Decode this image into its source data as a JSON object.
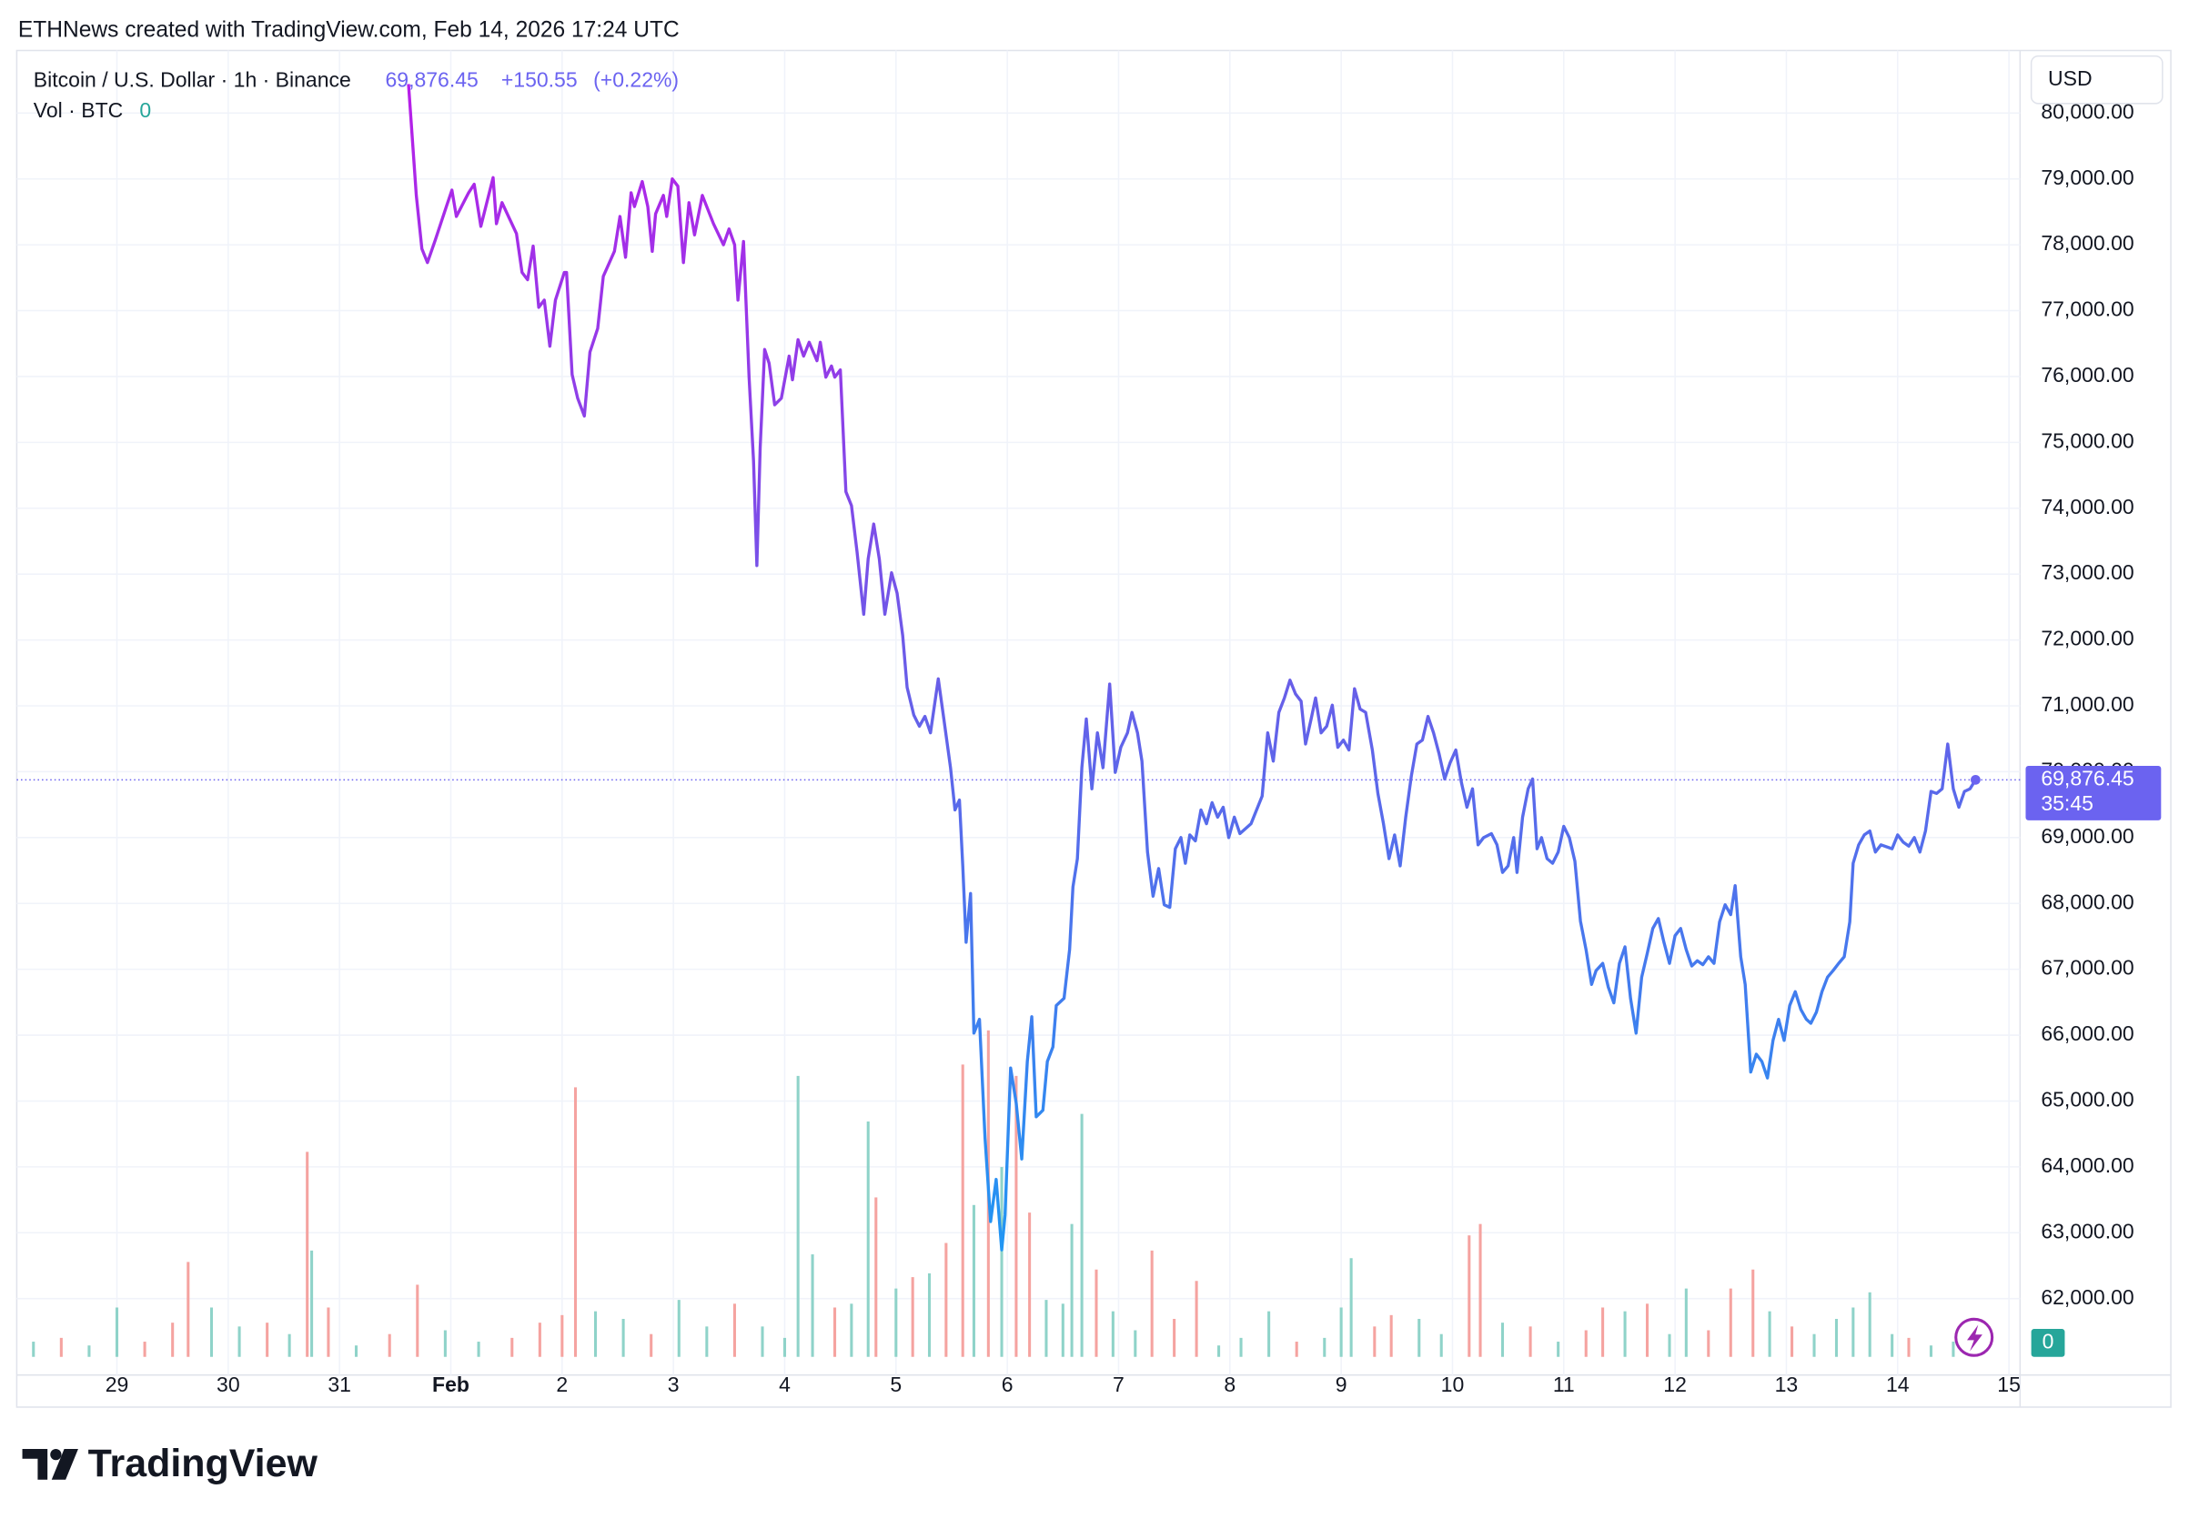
{
  "header": "ETHNews created with TradingView.com, Feb 14, 2026 17:24 UTC",
  "footer": {
    "brand": "TradingView"
  },
  "chart_data": {
    "type": "line",
    "symbol": "Bitcoin / U.S. Dollar · 1h · Binance",
    "last_price": {
      "value": 69876.45,
      "label": "69,876.45"
    },
    "change": {
      "value": 150.55,
      "label": "+150.55"
    },
    "change_pct": {
      "value": 0.22,
      "label": "(+0.22%)"
    },
    "countdown": "35:45",
    "currency": "USD",
    "volume_title": "Vol · BTC",
    "volume_last": 0,
    "gradient": [
      "#b81ee8",
      "#6a5ce8",
      "#2196f3"
    ],
    "badge_color": "#6b63f0",
    "grid": true,
    "xlim": [
      28.1,
      46.1
    ],
    "xticks": [
      {
        "value": 29,
        "label": "29"
      },
      {
        "value": 30,
        "label": "30"
      },
      {
        "value": 31,
        "label": "31"
      },
      {
        "value": 32,
        "label": "Feb"
      },
      {
        "value": 33,
        "label": "2"
      },
      {
        "value": 34,
        "label": "3"
      },
      {
        "value": 35,
        "label": "4"
      },
      {
        "value": 36,
        "label": "5"
      },
      {
        "value": 37,
        "label": "6"
      },
      {
        "value": 38,
        "label": "7"
      },
      {
        "value": 39,
        "label": "8"
      },
      {
        "value": 40,
        "label": "9"
      },
      {
        "value": 41,
        "label": "10"
      },
      {
        "value": 42,
        "label": "11"
      },
      {
        "value": 43,
        "label": "12"
      },
      {
        "value": 44,
        "label": "13"
      },
      {
        "value": 45,
        "label": "14"
      },
      {
        "value": 46,
        "label": "15"
      }
    ],
    "ylim": [
      60840,
      80950
    ],
    "yticks": [
      {
        "value": 62000,
        "label": "62,000.00"
      },
      {
        "value": 63000,
        "label": "63,000.00"
      },
      {
        "value": 64000,
        "label": "64,000.00"
      },
      {
        "value": 65000,
        "label": "65,000.00"
      },
      {
        "value": 66000,
        "label": "66,000.00"
      },
      {
        "value": 67000,
        "label": "67,000.00"
      },
      {
        "value": 68000,
        "label": "68,000.00"
      },
      {
        "value": 69000,
        "label": "69,000.00"
      },
      {
        "value": 70000,
        "label": "70,000.00"
      },
      {
        "value": 71000,
        "label": "71,000.00"
      },
      {
        "value": 72000,
        "label": "72,000.00"
      },
      {
        "value": 73000,
        "label": "73,000.00"
      },
      {
        "value": 74000,
        "label": "74,000.00"
      },
      {
        "value": 75000,
        "label": "75,000.00"
      },
      {
        "value": 76000,
        "label": "76,000.00"
      },
      {
        "value": 77000,
        "label": "77,000.00"
      },
      {
        "value": 78000,
        "label": "78,000.00"
      },
      {
        "value": 79000,
        "label": "79,000.00"
      },
      {
        "value": 80000,
        "label": "80,000.00"
      }
    ],
    "x": [
      31.62,
      31.69,
      31.74,
      31.79,
      31.86,
      31.96,
      32.01,
      32.05,
      32.16,
      32.21,
      32.27,
      32.38,
      32.41,
      32.46,
      32.59,
      32.64,
      32.69,
      32.74,
      32.79,
      32.84,
      32.89,
      32.94,
      33.02,
      33.04,
      33.09,
      33.14,
      33.2,
      33.25,
      33.32,
      33.37,
      33.47,
      33.52,
      33.57,
      33.62,
      33.65,
      33.72,
      33.77,
      33.81,
      33.84,
      33.91,
      33.94,
      33.99,
      34.04,
      34.09,
      34.14,
      34.19,
      34.26,
      34.36,
      34.45,
      34.5,
      34.55,
      34.58,
      34.63,
      34.68,
      34.72,
      34.75,
      34.78,
      34.82,
      34.86,
      34.91,
      34.97,
      35.04,
      35.07,
      35.12,
      35.17,
      35.22,
      35.29,
      35.32,
      35.37,
      35.42,
      35.45,
      35.5,
      35.55,
      35.6,
      35.65,
      35.71,
      35.75,
      35.8,
      35.85,
      35.9,
      35.96,
      36.01,
      36.06,
      36.1,
      36.16,
      36.21,
      36.26,
      36.31,
      36.38,
      36.43,
      36.49,
      36.53,
      36.57,
      36.6,
      36.63,
      36.67,
      36.7,
      36.75,
      36.8,
      36.85,
      36.9,
      36.95,
      36.98,
      37.03,
      37.08,
      37.13,
      37.18,
      37.22,
      37.26,
      37.32,
      37.36,
      37.41,
      37.44,
      37.51,
      37.56,
      37.59,
      37.63,
      37.67,
      37.71,
      37.76,
      37.81,
      37.86,
      37.92,
      37.97,
      38.02,
      38.08,
      38.12,
      38.17,
      38.21,
      38.26,
      38.31,
      38.36,
      38.41,
      38.46,
      38.51,
      38.56,
      38.6,
      38.64,
      38.69,
      38.74,
      38.79,
      38.84,
      38.89,
      38.94,
      38.99,
      39.04,
      39.09,
      39.19,
      39.24,
      39.29,
      39.34,
      39.39,
      39.44,
      39.49,
      39.54,
      39.59,
      39.64,
      39.68,
      39.73,
      39.77,
      39.82,
      39.87,
      39.92,
      39.97,
      40.02,
      40.07,
      40.12,
      40.17,
      40.22,
      40.28,
      40.33,
      40.38,
      40.43,
      40.48,
      40.53,
      40.58,
      40.63,
      40.68,
      40.73,
      40.78,
      40.83,
      40.88,
      40.93,
      40.98,
      41.03,
      41.08,
      41.13,
      41.18,
      41.23,
      41.28,
      41.35,
      41.4,
      41.45,
      41.5,
      41.55,
      41.58,
      41.63,
      41.68,
      41.72,
      41.76,
      41.8,
      41.85,
      41.9,
      41.95,
      42.0,
      42.05,
      42.1,
      42.15,
      42.2,
      42.25,
      42.29,
      42.35,
      42.4,
      42.45,
      42.5,
      42.55,
      42.6,
      42.65,
      42.7,
      42.75,
      42.8,
      42.85,
      42.9,
      42.95,
      43.0,
      43.05,
      43.1,
      43.15,
      43.2,
      43.25,
      43.3,
      43.35,
      43.4,
      43.45,
      43.5,
      43.54,
      43.59,
      43.63,
      43.68,
      43.73,
      43.78,
      43.83,
      43.88,
      43.93,
      43.98,
      44.03,
      44.08,
      44.13,
      44.18,
      44.22,
      44.27,
      44.32,
      44.37,
      44.42,
      44.47,
      44.52,
      44.57,
      44.6,
      44.65,
      44.7,
      44.75,
      44.8,
      44.85,
      44.95,
      45.0,
      45.05,
      45.1,
      45.15,
      45.2,
      45.25,
      45.3,
      45.35,
      45.4,
      45.45,
      45.5,
      45.55,
      45.6,
      45.65,
      45.7
    ],
    "values": [
      80440,
      78750,
      77940,
      77730,
      78070,
      78580,
      78830,
      78430,
      78790,
      78920,
      78280,
      79020,
      78320,
      78640,
      78170,
      77580,
      77470,
      77980,
      77050,
      77160,
      76460,
      77160,
      77580,
      77580,
      76030,
      75670,
      75400,
      76370,
      76730,
      77520,
      77900,
      78430,
      77810,
      78790,
      78580,
      78960,
      78580,
      77900,
      78470,
      78750,
      78430,
      79000,
      78890,
      77730,
      78640,
      78150,
      78750,
      78320,
      78000,
      78240,
      78000,
      77160,
      78050,
      75990,
      74720,
      73130,
      74930,
      76410,
      76200,
      75570,
      75670,
      76310,
      75950,
      76560,
      76310,
      76520,
      76240,
      76520,
      75990,
      76160,
      75990,
      76100,
      74250,
      74040,
      73340,
      72390,
      73230,
      73760,
      73230,
      72390,
      73020,
      72710,
      72070,
      71280,
      70860,
      70690,
      70840,
      70590,
      71410,
      70800,
      70060,
      69420,
      69570,
      68570,
      67410,
      68150,
      66030,
      66240,
      64440,
      63170,
      63810,
      62740,
      63270,
      65500,
      64970,
      64120,
      65600,
      66280,
      64760,
      64860,
      65600,
      65820,
      66450,
      66560,
      67300,
      68250,
      68680,
      70060,
      70800,
      69740,
      70590,
      70060,
      71330,
      69990,
      70370,
      70590,
      70900,
      70590,
      70160,
      68780,
      68110,
      68530,
      67980,
      67940,
      68830,
      69000,
      68610,
      69040,
      68950,
      69420,
      69210,
      69530,
      69310,
      69460,
      69000,
      69310,
      69060,
      69210,
      69420,
      69630,
      70590,
      70160,
      70900,
      71120,
      71390,
      71180,
      71070,
      70420,
      70800,
      71120,
      70590,
      70690,
      71010,
      70370,
      70480,
      70330,
      71260,
      70950,
      70900,
      70330,
      69670,
      69210,
      68680,
      69040,
      68570,
      69310,
      69930,
      70420,
      70480,
      70840,
      70590,
      70270,
      69890,
      70140,
      70330,
      69840,
      69460,
      69740,
      68890,
      69000,
      69060,
      68890,
      68470,
      68570,
      69000,
      68470,
      69310,
      69740,
      69890,
      68830,
      69000,
      68680,
      68610,
      68780,
      69170,
      69000,
      68640,
      67730,
      67300,
      66770,
      66980,
      67090,
      66730,
      66490,
      67090,
      67340,
      66560,
      66030,
      66880,
      67240,
      67620,
      67770,
      67410,
      67090,
      67510,
      67620,
      67300,
      67050,
      67130,
      67070,
      67190,
      67090,
      67720,
      67980,
      67830,
      68270,
      67190,
      66770,
      65440,
      65710,
      65600,
      65350,
      65920,
      66240,
      65920,
      66450,
      66660,
      66390,
      66240,
      66180,
      66350,
      66660,
      66880,
      66980,
      67090,
      67190,
      67720,
      68610,
      68890,
      69040,
      69100,
      68780,
      68890,
      68830,
      69040,
      68930,
      68870,
      69000,
      68780,
      69100,
      69700,
      69670,
      69740,
      70420,
      69740,
      69460,
      69700,
      69740,
      69876.45
    ],
    "volume": {
      "up_color": "#8fd3c9",
      "down_color": "#f5a3a0",
      "badge_color": "#26a69a",
      "lim": [
        0,
        100
      ],
      "x": [
        28.25,
        28.5,
        28.75,
        29.0,
        29.25,
        29.5,
        29.64,
        29.85,
        30.1,
        30.35,
        30.55,
        30.71,
        30.75,
        30.9,
        31.15,
        31.45,
        31.7,
        31.95,
        32.25,
        32.55,
        32.8,
        33.0,
        33.12,
        33.3,
        33.55,
        33.8,
        34.05,
        34.3,
        34.55,
        34.8,
        35.0,
        35.12,
        35.25,
        35.45,
        35.6,
        35.75,
        35.82,
        36.0,
        36.15,
        36.3,
        36.45,
        36.6,
        36.7,
        36.83,
        36.95,
        37.08,
        37.2,
        37.35,
        37.5,
        37.58,
        37.67,
        37.8,
        37.95,
        38.15,
        38.3,
        38.5,
        38.7,
        38.9,
        39.1,
        39.35,
        39.6,
        39.85,
        40.0,
        40.09,
        40.3,
        40.45,
        40.7,
        40.9,
        41.15,
        41.25,
        41.45,
        41.7,
        41.95,
        42.2,
        42.35,
        42.55,
        42.75,
        42.95,
        43.1,
        43.3,
        43.5,
        43.7,
        43.85,
        44.05,
        44.25,
        44.45,
        44.6,
        44.75,
        44.95,
        45.1,
        45.3,
        45.5,
        45.65
      ],
      "values": [
        4,
        5,
        3,
        13,
        4,
        9,
        25,
        13,
        8,
        9,
        6,
        54,
        28,
        13,
        3,
        6,
        19,
        7,
        4,
        5,
        9,
        11,
        71,
        12,
        10,
        6,
        15,
        8,
        14,
        8,
        5,
        74,
        27,
        13,
        14,
        62,
        42,
        18,
        21,
        22,
        30,
        77,
        40,
        86,
        50,
        74,
        38,
        15,
        14,
        35,
        64,
        23,
        12,
        7,
        28,
        10,
        20,
        3,
        5,
        12,
        4,
        5,
        13,
        26,
        8,
        11,
        10,
        6,
        32,
        35,
        9,
        8,
        4,
        7,
        13,
        12,
        14,
        6,
        18,
        7,
        18,
        23,
        12,
        8,
        6,
        10,
        13,
        17,
        6,
        5,
        3,
        4,
        0
      ],
      "up": [
        true,
        false,
        true,
        true,
        false,
        false,
        false,
        true,
        true,
        false,
        true,
        false,
        true,
        false,
        true,
        false,
        false,
        true,
        true,
        false,
        false,
        false,
        false,
        true,
        true,
        false,
        true,
        true,
        false,
        true,
        true,
        true,
        true,
        false,
        true,
        true,
        false,
        true,
        false,
        true,
        false,
        false,
        true,
        false,
        true,
        false,
        false,
        true,
        true,
        true,
        true,
        false,
        true,
        true,
        false,
        false,
        false,
        true,
        true,
        true,
        false,
        true,
        true,
        true,
        false,
        false,
        true,
        true,
        false,
        false,
        true,
        false,
        true,
        false,
        false,
        true,
        false,
        true,
        true,
        false,
        false,
        false,
        true,
        false,
        true,
        true,
        true,
        true,
        true,
        false,
        true,
        true,
        true
      ]
    }
  }
}
